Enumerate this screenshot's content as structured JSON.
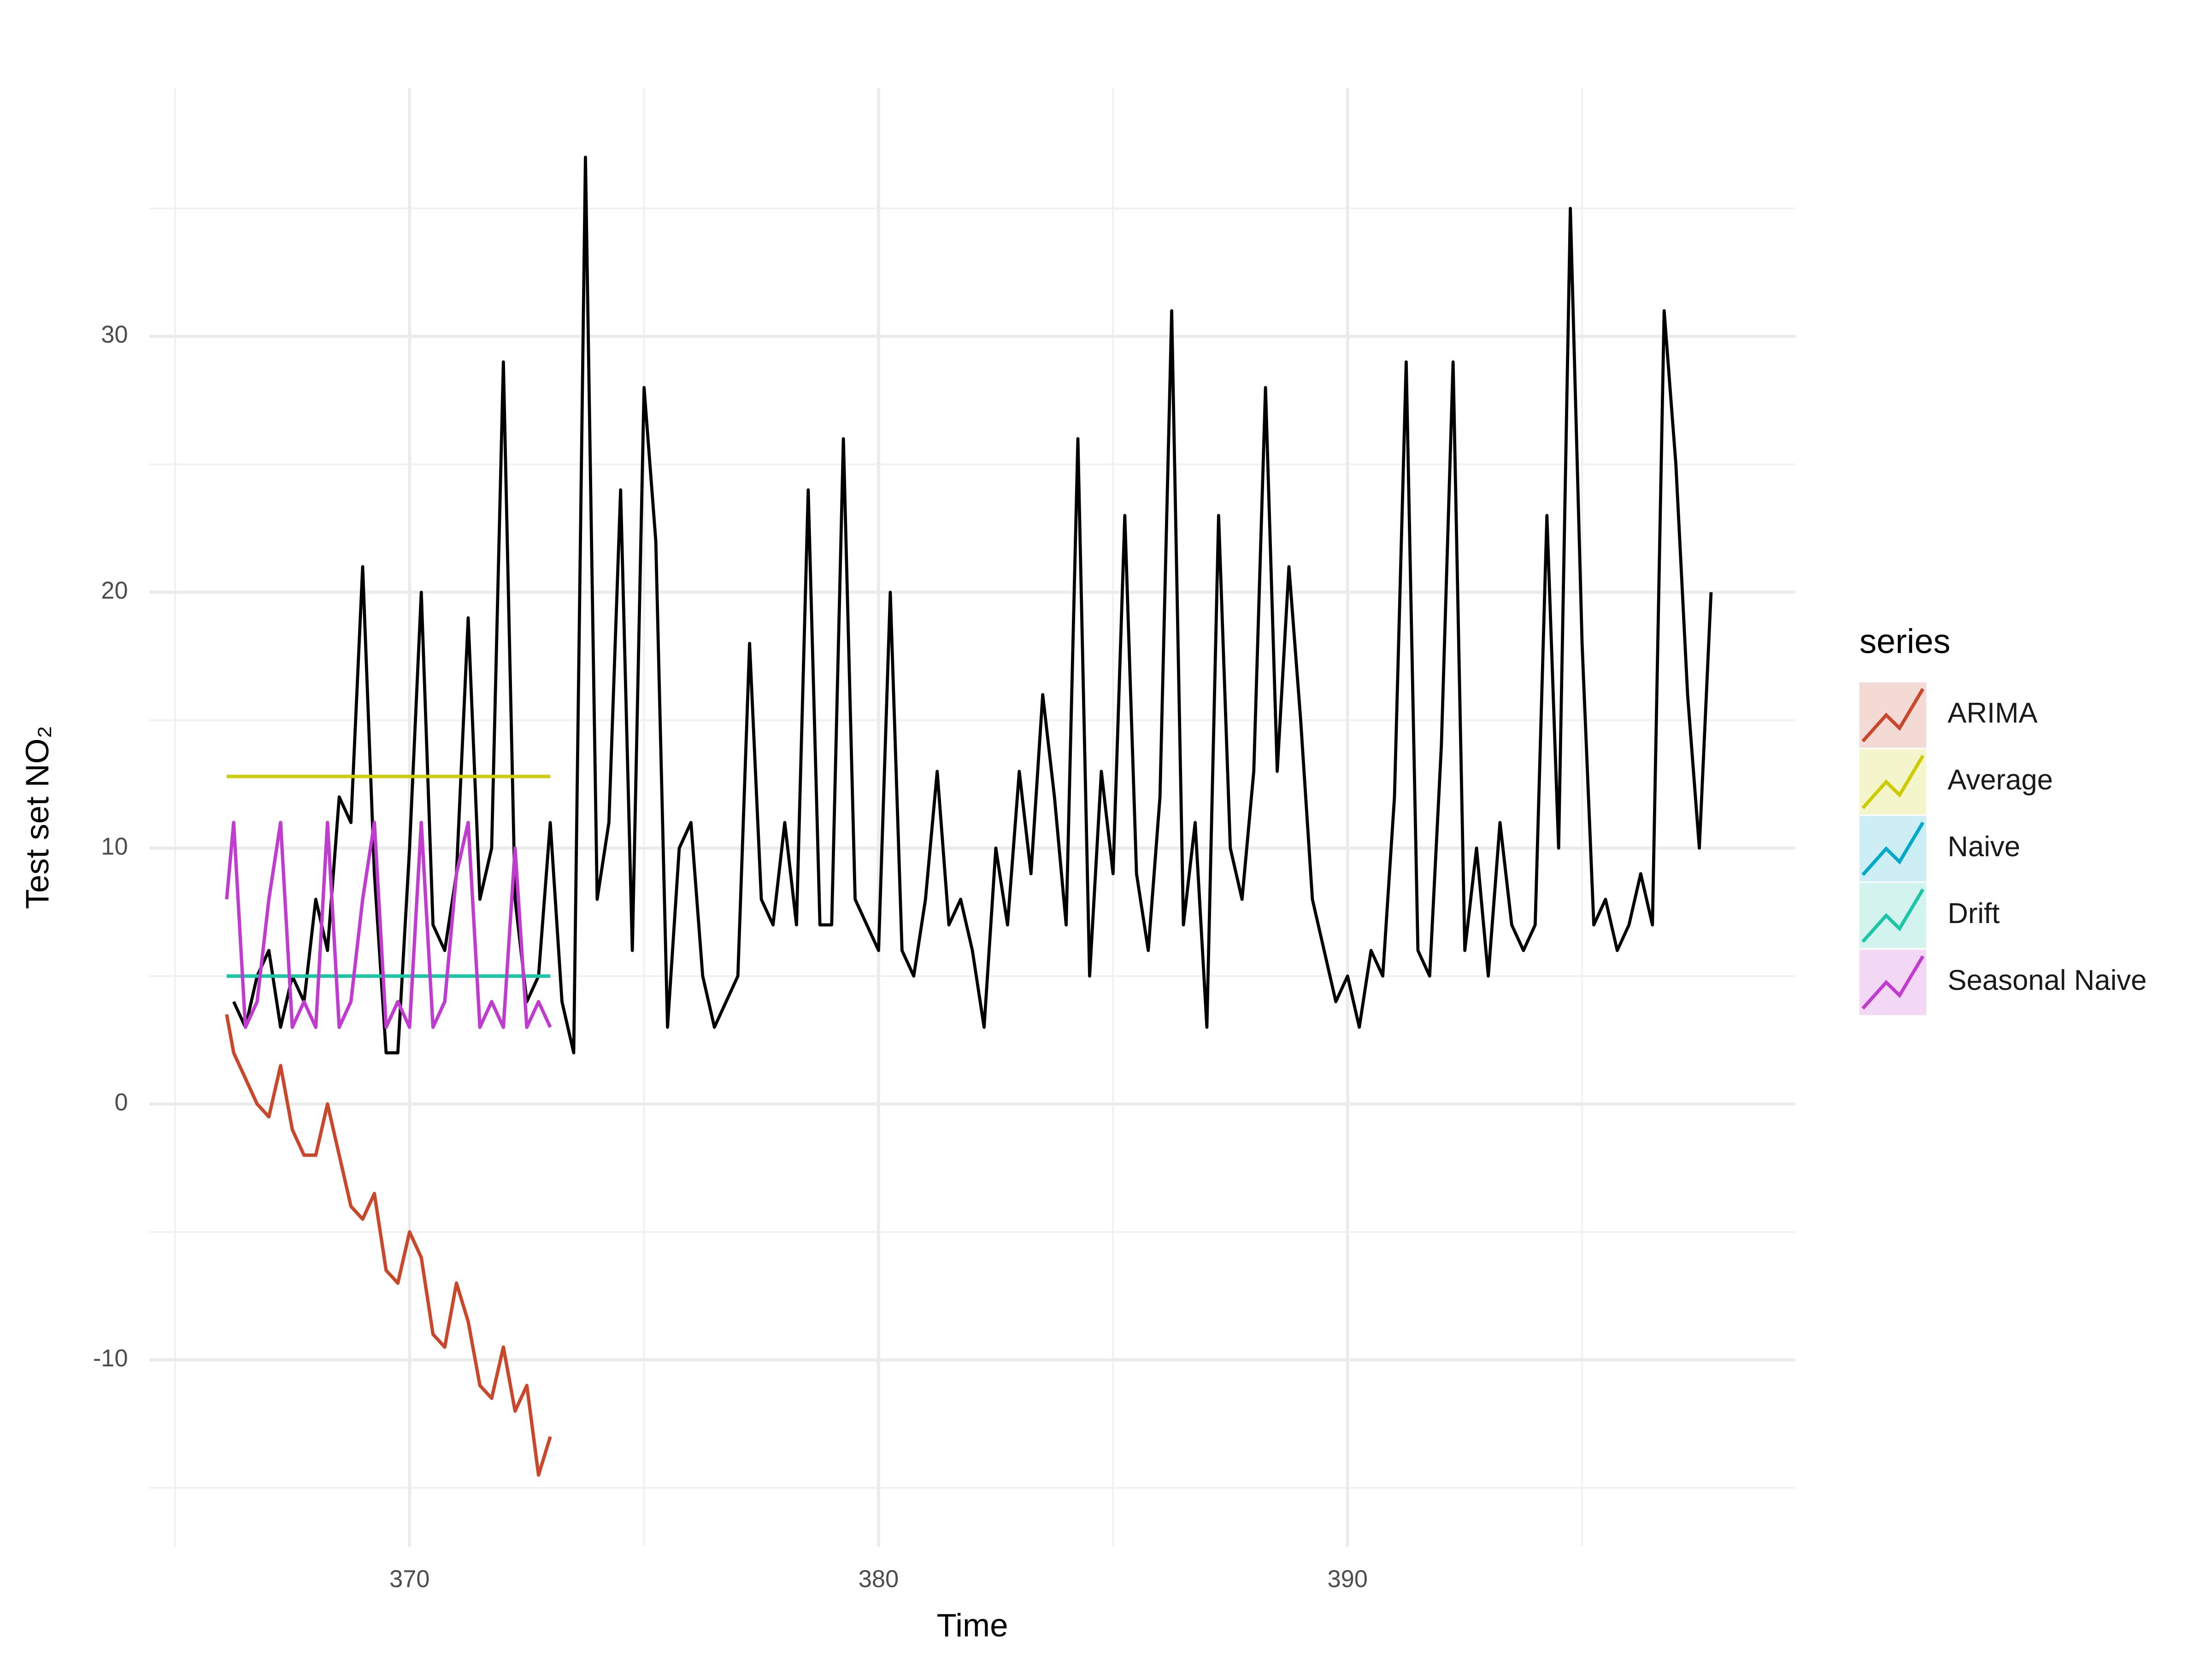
{
  "chart_data": {
    "type": "line",
    "xlabel": "Time",
    "ylabel": "Test set NO₂",
    "legend_title": "series",
    "xlim": [
      364.45,
      399.55
    ],
    "ylim": [
      -17.3,
      39.7
    ],
    "xticks": [
      370,
      380,
      390
    ],
    "yticks": [
      -10,
      0,
      10,
      20,
      30
    ],
    "xminorticks": [
      365,
      375,
      385,
      395
    ],
    "yminorticks": [
      -15,
      -5,
      5,
      15,
      25,
      35
    ],
    "grid": true,
    "legend": "right",
    "series": [
      {
        "color": "#000000",
        "x": [
          366.25,
          366.5,
          366.75,
          367,
          367.25,
          367.5,
          367.75,
          368,
          368.25,
          368.5,
          368.75,
          369,
          369.25,
          369.5,
          369.75,
          370,
          370.25,
          370.5,
          370.75,
          371,
          371.25,
          371.5,
          371.75,
          372,
          372.25,
          372.5,
          372.75,
          373,
          373.25,
          373.5,
          373.75,
          374,
          374.25,
          374.5,
          374.75,
          375,
          375.25,
          375.5,
          375.75,
          376,
          376.25,
          376.5,
          376.75,
          377,
          377.25,
          377.5,
          377.75,
          378,
          378.25,
          378.5,
          378.75,
          379,
          379.25,
          379.5,
          379.75,
          380,
          380.25,
          380.5,
          380.75,
          381,
          381.25,
          381.5,
          381.75,
          382,
          382.25,
          382.5,
          382.75,
          383,
          383.25,
          383.5,
          383.75,
          384,
          384.25,
          384.5,
          384.75,
          385,
          385.25,
          385.5,
          385.75,
          386,
          386.25,
          386.5,
          386.75,
          387,
          387.25,
          387.5,
          387.75,
          388,
          388.25,
          388.5,
          388.75,
          389,
          389.25,
          389.5,
          389.75,
          390,
          390.25,
          390.5,
          390.75,
          391,
          391.25,
          391.5,
          391.75,
          392,
          392.25,
          392.5,
          392.75,
          393,
          393.25,
          393.5,
          393.75,
          394,
          394.25,
          394.5,
          394.75,
          395,
          395.25,
          395.5,
          395.75,
          396,
          396.25,
          396.5,
          396.75,
          397,
          397.25,
          397.5,
          397.75
        ],
        "values": [
          4,
          3,
          5,
          6,
          3,
          5,
          4,
          8,
          6,
          12,
          11,
          21,
          9,
          2,
          2,
          10,
          20,
          7,
          6,
          9,
          19,
          8,
          10,
          29,
          8,
          4,
          5,
          11,
          4,
          2,
          37,
          8,
          11,
          24,
          6,
          28,
          22,
          3,
          10,
          11,
          5,
          3,
          4,
          5,
          18,
          8,
          7,
          11,
          7,
          24,
          7,
          7,
          26,
          8,
          7,
          6,
          20,
          6,
          5,
          8,
          13,
          7,
          8,
          6,
          3,
          10,
          7,
          13,
          9,
          16,
          12,
          7,
          26,
          5,
          13,
          9,
          23,
          9,
          6,
          12,
          31,
          7,
          11,
          3,
          23,
          10,
          8,
          13,
          28,
          13,
          21,
          15,
          8,
          6,
          4,
          5,
          3,
          6,
          5,
          12,
          29,
          6,
          5,
          14,
          29,
          6,
          10,
          5,
          11,
          7,
          6,
          7,
          23,
          10,
          35,
          18,
          7,
          8,
          6,
          7,
          9,
          7,
          31,
          25,
          16,
          10,
          20
        ]
      },
      {
        "name": "ARIMA",
        "color": "#c9472b",
        "x": [
          366.1,
          366.25,
          366.5,
          366.75,
          367,
          367.25,
          367.5,
          367.75,
          368,
          368.25,
          368.5,
          368.75,
          369,
          369.25,
          369.5,
          369.75,
          370,
          370.25,
          370.5,
          370.75,
          371,
          371.25,
          371.5,
          371.75,
          372,
          372.25,
          372.5,
          372.75,
          373
        ],
        "values": [
          3.5,
          2,
          1,
          0,
          -0.5,
          1.5,
          -1,
          -2,
          -2,
          0,
          -2,
          -4,
          -4.5,
          -3.5,
          -6.5,
          -7,
          -5,
          -6,
          -9,
          -9.5,
          -7,
          -8.5,
          -11,
          -11.5,
          -9.5,
          -12,
          -11,
          -14.5,
          -13
        ]
      },
      {
        "name": "Average",
        "color": "#cccc00",
        "x": [
          366.1,
          373
        ],
        "values": [
          12.8,
          12.8
        ]
      },
      {
        "name": "Naive",
        "color": "#00a9c9",
        "x": [
          366.1,
          373
        ],
        "values": [
          5,
          5
        ]
      },
      {
        "name": "Drift",
        "color": "#1cc4a8",
        "x": [
          366.1,
          373
        ],
        "values": [
          5,
          5
        ]
      },
      {
        "name": "Seasonal Naive",
        "color": "#c03ccf",
        "x": [
          366.1,
          366.25,
          366.5,
          366.75,
          367,
          367.25,
          367.5,
          367.75,
          368,
          368.25,
          368.5,
          368.75,
          369,
          369.25,
          369.5,
          369.75,
          370,
          370.25,
          370.5,
          370.75,
          371,
          371.25,
          371.5,
          371.75,
          372,
          372.25,
          372.5,
          372.75,
          373
        ],
        "values": [
          8,
          11,
          3,
          4,
          8,
          11,
          3,
          4,
          3,
          11,
          3,
          4,
          8,
          11,
          3,
          4,
          3,
          11,
          3,
          4,
          9,
          11,
          3,
          4,
          3,
          10,
          3,
          4,
          3
        ]
      }
    ]
  }
}
